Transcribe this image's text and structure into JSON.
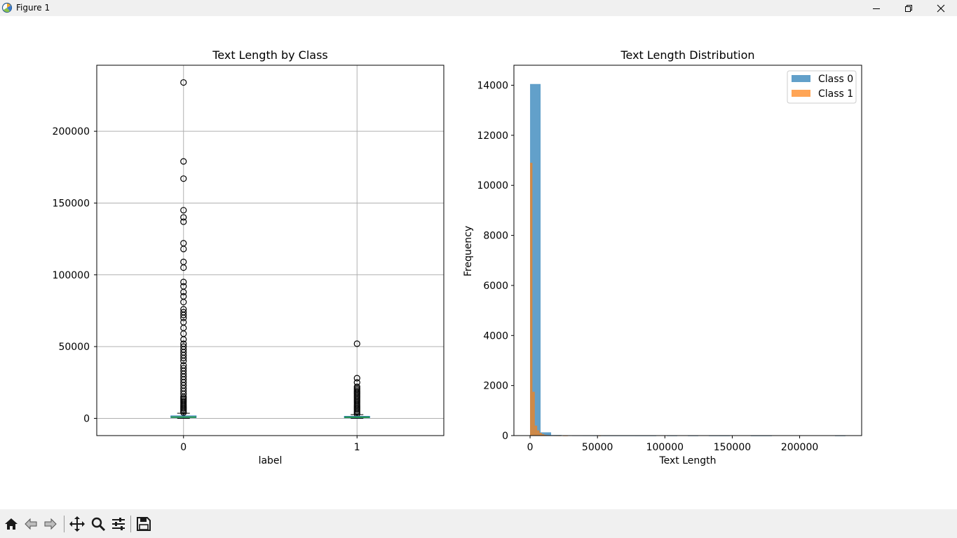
{
  "window": {
    "title": "Figure 1"
  },
  "chart_data": [
    {
      "type": "box",
      "title": "Text Length by Class",
      "xlabel": "label",
      "ylabel": "",
      "categories": [
        "0",
        "1"
      ],
      "ylim": [
        -12000,
        246000
      ],
      "yticks": [
        0,
        50000,
        100000,
        150000,
        200000
      ],
      "ytick_labels": [
        "0",
        "50000",
        "100000",
        "150000",
        "200000"
      ],
      "grid": true,
      "boxes": [
        {
          "category": "0",
          "q1": 500,
          "median": 900,
          "q3": 1700,
          "whisker_low": 0,
          "whisker_high": 3600,
          "outliers": [
            234000,
            179000,
            167000,
            145000,
            140000,
            137000,
            122000,
            118000,
            109000,
            105000,
            95000,
            92000,
            88000,
            85000,
            81000,
            76000,
            74000,
            72000,
            70000,
            67000,
            63000,
            59000,
            55000,
            52000,
            50000,
            48000,
            46000,
            44000,
            42000,
            40000,
            37000,
            35000,
            33000,
            31000,
            29000,
            27000,
            25000,
            23000,
            21000,
            19000,
            17000,
            15000,
            14000,
            13000,
            12000,
            11000,
            10000,
            9000,
            8000,
            7000,
            6000,
            5000,
            4000
          ]
        },
        {
          "category": "1",
          "q1": 400,
          "median": 800,
          "q3": 1400,
          "whisker_low": 0,
          "whisker_high": 2600,
          "outliers": [
            52000,
            28000,
            25000,
            22000,
            21000,
            20000,
            19000,
            18000,
            17000,
            16000,
            15000,
            14000,
            13000,
            12000,
            11000,
            10000,
            9000,
            8000,
            7000,
            6000,
            5000,
            4000,
            3000
          ]
        }
      ]
    },
    {
      "type": "histogram",
      "title": "Text Length Distribution",
      "xlabel": "Text Length",
      "ylabel": "Frequency",
      "xlim": [
        -12000,
        246000
      ],
      "ylim": [
        0,
        14800
      ],
      "xticks": [
        0,
        50000,
        100000,
        150000,
        200000
      ],
      "xtick_labels": [
        "0",
        "50000",
        "100000",
        "150000",
        "200000"
      ],
      "yticks": [
        0,
        2000,
        4000,
        6000,
        8000,
        10000,
        12000,
        14000
      ],
      "ytick_labels": [
        "0",
        "2000",
        "4000",
        "6000",
        "8000",
        "10000",
        "12000",
        "14000"
      ],
      "legend_position": "top-right",
      "series": [
        {
          "name": "Class 0",
          "color": "#1f77b4",
          "bins": [
            [
              0,
              7800,
              14050
            ],
            [
              7800,
              15600,
              130
            ],
            [
              15600,
              23400,
              22
            ],
            [
              23400,
              31200,
              10
            ],
            [
              31200,
              39000,
              6
            ],
            [
              39000,
              46800,
              5
            ],
            [
              46800,
              54600,
              4
            ],
            [
              54600,
              62400,
              3
            ],
            [
              62400,
              70200,
              3
            ],
            [
              70200,
              78000,
              3
            ],
            [
              78000,
              85800,
              2
            ],
            [
              85800,
              93600,
              2
            ],
            [
              101400,
              109200,
              2
            ],
            [
              117000,
              124800,
              2
            ],
            [
              132600,
              140400,
              2
            ],
            [
              140400,
              148200,
              1
            ],
            [
              163800,
              171600,
              1
            ],
            [
              171600,
              179400,
              1
            ],
            [
              226200,
              234000,
              1
            ]
          ]
        },
        {
          "name": "Class 1",
          "color": "#ff7f0e",
          "bins": [
            [
              0,
              1750,
              10900
            ],
            [
              1750,
              3500,
              1750
            ],
            [
              3500,
              5250,
              400
            ],
            [
              5250,
              7000,
              210
            ],
            [
              7000,
              8750,
              110
            ],
            [
              8750,
              10500,
              60
            ],
            [
              10500,
              12250,
              30
            ],
            [
              12250,
              14000,
              18
            ],
            [
              14000,
              15750,
              12
            ],
            [
              15750,
              17500,
              8
            ],
            [
              17500,
              19250,
              6
            ],
            [
              19250,
              21000,
              5
            ],
            [
              21000,
              22750,
              3
            ],
            [
              24500,
              26250,
              2
            ],
            [
              26250,
              28000,
              2
            ],
            [
              50750,
              52500,
              1
            ]
          ]
        }
      ]
    }
  ]
}
